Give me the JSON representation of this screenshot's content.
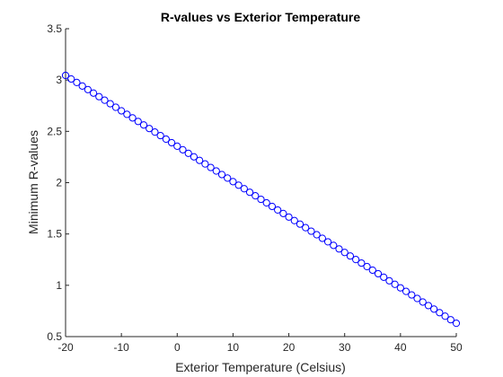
{
  "chart_data": {
    "type": "scatter",
    "title": "R-values vs Exterior Temperature",
    "xlabel": "Exterior Temperature (Celsius)",
    "ylabel": "Minimum R-values",
    "xlim": [
      -20,
      50
    ],
    "ylim": [
      0.5,
      3.5
    ],
    "x_ticks": [
      -20,
      -10,
      0,
      10,
      20,
      30,
      40,
      50
    ],
    "x_tick_labels": [
      "-20",
      "-10",
      "0",
      "10",
      "20",
      "30",
      "40",
      "50"
    ],
    "y_ticks": [
      0.5,
      1,
      1.5,
      2,
      2.5,
      3,
      3.5
    ],
    "y_tick_labels": [
      "0.5",
      "1",
      "1.5",
      "2",
      "2.5",
      "3",
      "3.5"
    ],
    "grid": false,
    "marker": "circle",
    "marker_color": "#0000ff",
    "series": [
      {
        "x": [
          -20,
          -19,
          -18,
          -17,
          -16,
          -15,
          -14,
          -13,
          -12,
          -11,
          -10,
          -9,
          -8,
          -7,
          -6,
          -5,
          -4,
          -3,
          -2,
          -1,
          0,
          1,
          2,
          3,
          4,
          5,
          6,
          7,
          8,
          9,
          10,
          11,
          12,
          13,
          14,
          15,
          16,
          17,
          18,
          19,
          20,
          21,
          22,
          23,
          24,
          25,
          26,
          27,
          28,
          29,
          30,
          31,
          32,
          33,
          34,
          35,
          36,
          37,
          38,
          39,
          40,
          41,
          42,
          43,
          44,
          45,
          46,
          47,
          48,
          49,
          50
        ],
        "y": [
          3.045,
          3.0105,
          2.976,
          2.9415,
          2.907,
          2.8725,
          2.838,
          2.8035,
          2.769,
          2.7345,
          2.7,
          2.6655,
          2.631,
          2.5965,
          2.562,
          2.5275,
          2.493,
          2.4585,
          2.424,
          2.3895,
          2.355,
          2.3205,
          2.286,
          2.2515,
          2.217,
          2.1825,
          2.148,
          2.1135,
          2.079,
          2.0445,
          2.01,
          1.9755,
          1.941,
          1.9065,
          1.872,
          1.8375,
          1.803,
          1.7685,
          1.734,
          1.6995,
          1.665,
          1.6305,
          1.596,
          1.5615,
          1.527,
          1.4925,
          1.458,
          1.4235,
          1.389,
          1.3545,
          1.32,
          1.2855,
          1.251,
          1.2165,
          1.182,
          1.1475,
          1.113,
          1.0785,
          1.044,
          1.0095,
          0.975,
          0.9405,
          0.906,
          0.8715,
          0.837,
          0.8025,
          0.768,
          0.7335,
          0.699,
          0.6645,
          0.63
        ]
      }
    ]
  }
}
